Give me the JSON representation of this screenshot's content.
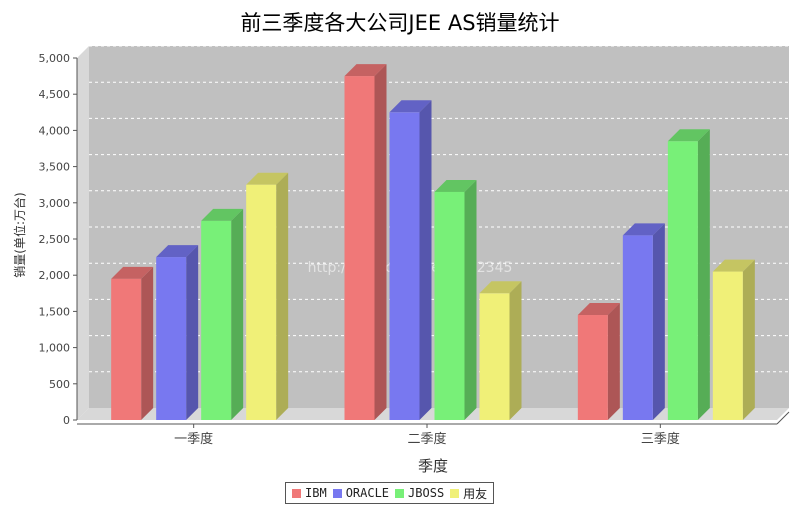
{
  "chart_data": {
    "type": "bar",
    "title": "前三季度各大公司JEE AS销量统计",
    "xlabel": "季度",
    "ylabel": "销量(单位:万台)",
    "categories": [
      "一季度",
      "二季度",
      "三季度"
    ],
    "series": [
      {
        "name": "IBM",
        "values": [
          1950,
          4750,
          1450
        ],
        "color": "#f07878"
      },
      {
        "name": "ORACLE",
        "values": [
          2250,
          4250,
          2550
        ],
        "color": "#7878f0"
      },
      {
        "name": "JBOSS",
        "values": [
          2750,
          3150,
          3850
        ],
        "color": "#78f078"
      },
      {
        "name": "用友",
        "values": [
          3250,
          1750,
          2050
        ],
        "color": "#f0f078"
      }
    ],
    "ylim": [
      0,
      5000
    ],
    "yticks": [
      "0",
      "500",
      "1,000",
      "1,500",
      "2,000",
      "2,500",
      "3,000",
      "3,500",
      "4,000",
      "4,500",
      "5,000"
    ],
    "grid": true,
    "legend_position": "bottom",
    "watermark": "http://blog.csdn.net/u012345"
  }
}
